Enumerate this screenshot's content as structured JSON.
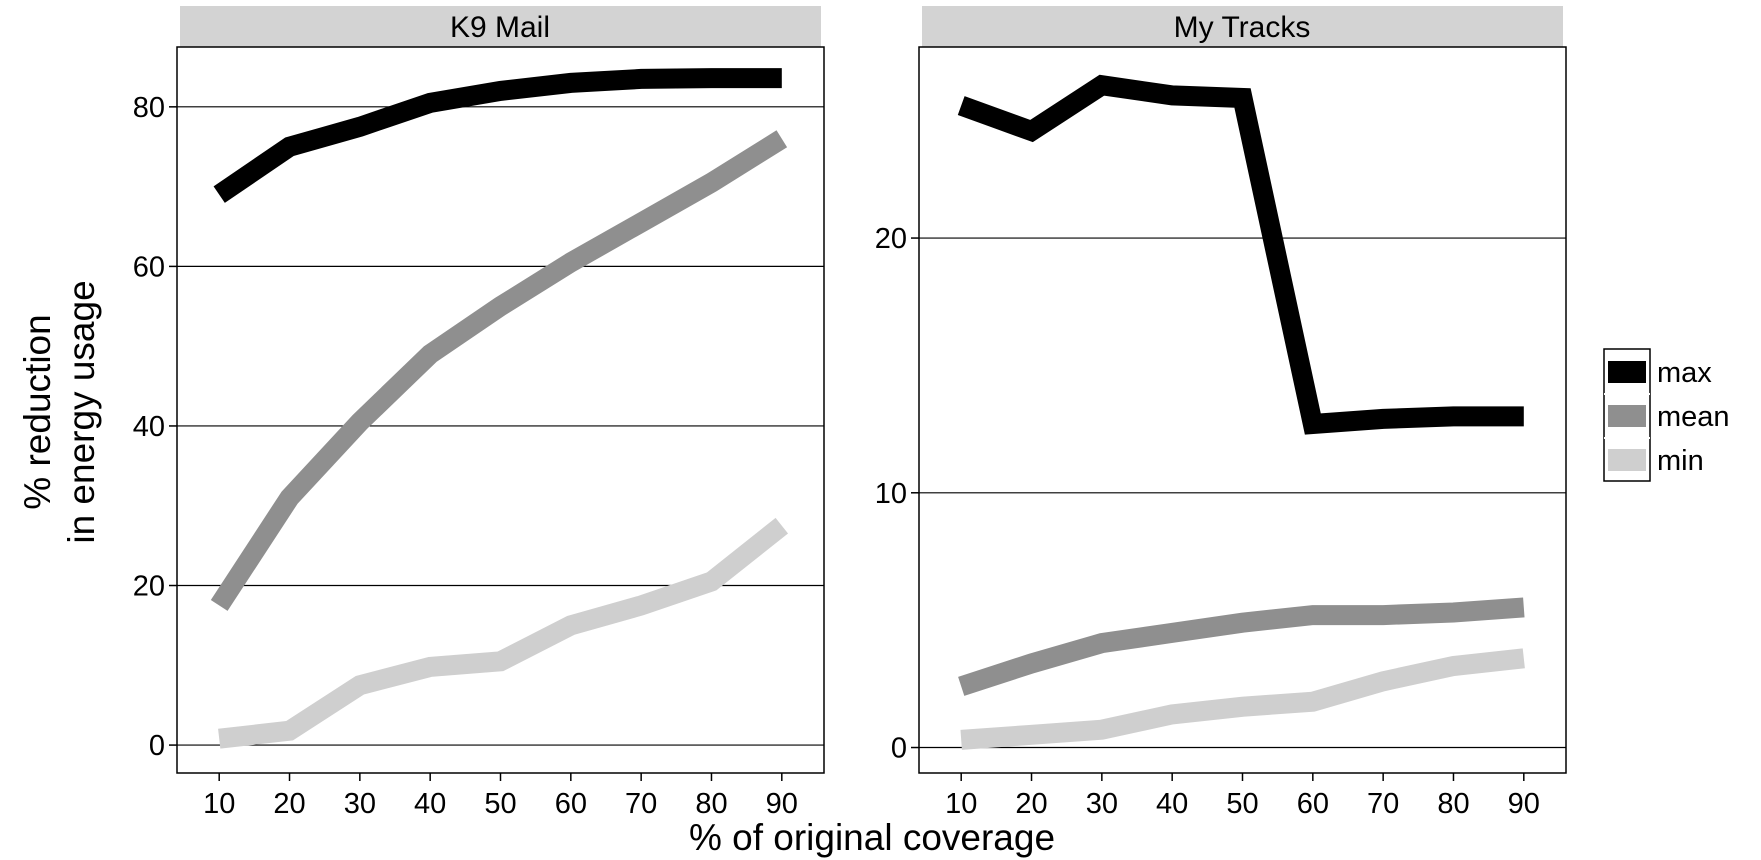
{
  "chart_data": {
    "type": "line",
    "xlabel": "% of original coverage",
    "ylabel_lines": [
      "% reduction",
      "in energy usage"
    ],
    "legend": {
      "placement": "right",
      "entries": [
        {
          "name": "max",
          "color": "#000000"
        },
        {
          "name": "mean",
          "color": "#8f8f8f"
        },
        {
          "name": "min",
          "color": "#cfcfcf"
        }
      ]
    },
    "grid": true,
    "panels": [
      {
        "title": "K9 Mail",
        "x": [
          10,
          20,
          30,
          40,
          50,
          60,
          70,
          80,
          90
        ],
        "xlim": [
          4,
          96
        ],
        "ylim": [
          -3.5,
          87.5
        ],
        "yticks": [
          0,
          20,
          40,
          60,
          80
        ],
        "series": [
          {
            "name": "max",
            "color": "#000000",
            "values": [
              69,
              75,
              77.5,
              80.5,
              82,
              83,
              83.5,
              83.6,
              83.6
            ]
          },
          {
            "name": "mean",
            "color": "#8f8f8f",
            "values": [
              17.5,
              31,
              40.5,
              49,
              55,
              60.5,
              65.5,
              70.5,
              76
            ]
          },
          {
            "name": "min",
            "color": "#cfcfcf",
            "values": [
              0.8,
              1.8,
              7.5,
              9.8,
              10.5,
              15,
              17.5,
              20.5,
              27.5
            ]
          }
        ]
      },
      {
        "title": "My Tracks",
        "x": [
          10,
          20,
          30,
          40,
          50,
          60,
          70,
          80,
          90
        ],
        "xlim": [
          4,
          96
        ],
        "ylim": [
          -1,
          27.5
        ],
        "yticks": [
          0,
          10,
          20
        ],
        "series": [
          {
            "name": "max",
            "color": "#000000",
            "values": [
              25.2,
              24.2,
              26,
              25.6,
              25.5,
              12.7,
              12.9,
              13,
              13
            ]
          },
          {
            "name": "mean",
            "color": "#8f8f8f",
            "values": [
              2.4,
              3.3,
              4.1,
              4.5,
              4.9,
              5.2,
              5.2,
              5.3,
              5.5
            ]
          },
          {
            "name": "min",
            "color": "#cfcfcf",
            "values": [
              0.3,
              0.5,
              0.7,
              1.3,
              1.6,
              1.8,
              2.6,
              3.2,
              3.5
            ]
          }
        ]
      }
    ]
  }
}
